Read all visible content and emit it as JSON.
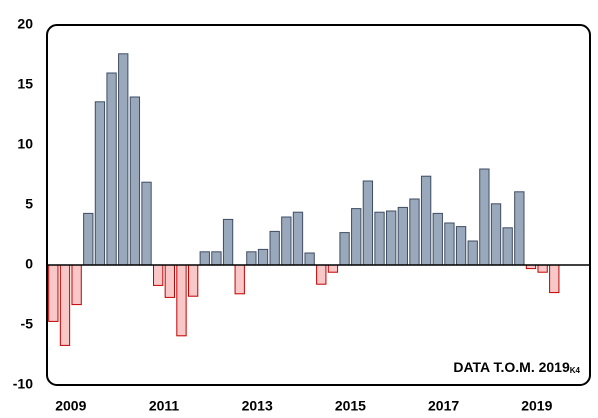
{
  "chart_data": {
    "type": "bar",
    "annotation": "DATA T.O.M. 2019",
    "annotation_subscript": "K4",
    "categories": [
      null,
      "2009",
      null,
      null,
      null,
      null,
      null,
      null,
      null,
      "2011",
      null,
      null,
      null,
      null,
      null,
      null,
      null,
      "2013",
      null,
      null,
      null,
      null,
      null,
      null,
      null,
      "2015",
      null,
      null,
      null,
      null,
      null,
      null,
      null,
      "2017",
      null,
      null,
      null,
      null,
      null,
      null,
      null,
      "2019",
      null,
      null
    ],
    "values": [
      -4.7,
      -6.7,
      -3.3,
      4.3,
      13.6,
      16.0,
      17.6,
      14.0,
      6.9,
      -1.7,
      -2.7,
      -5.9,
      -2.6,
      1.1,
      1.1,
      3.8,
      -2.4,
      1.1,
      1.3,
      2.8,
      4.0,
      4.4,
      1.0,
      -1.6,
      -0.6,
      2.7,
      4.7,
      7.0,
      4.4,
      4.5,
      4.8,
      5.5,
      7.4,
      4.3,
      3.5,
      3.2,
      2.0,
      8.0,
      5.1,
      3.1,
      6.1,
      -0.3,
      -0.6,
      -2.3
    ],
    "positive_color": "#9aa8bb",
    "positive_edge": "#3f4d63",
    "negative_color": "#f8c8c8",
    "negative_edge": "#c00000",
    "ylim": [
      -10,
      20
    ],
    "yticks": [
      -10,
      -5,
      0,
      5,
      10,
      15,
      20
    ],
    "grid": false
  }
}
